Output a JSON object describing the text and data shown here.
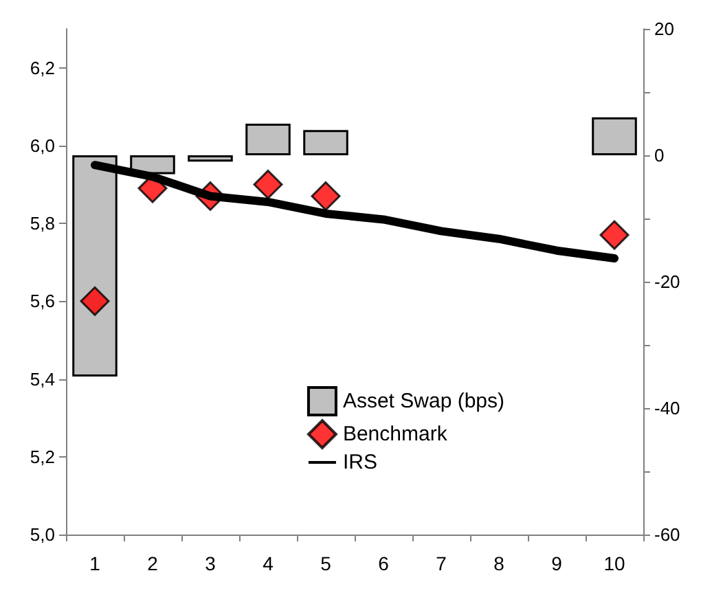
{
  "chart_data": {
    "type": "bar",
    "categories": [
      "1",
      "2",
      "3",
      "4",
      "5",
      "6",
      "7",
      "8",
      "9",
      "10"
    ],
    "series": [
      {
        "name": "Asset Swap (bps)",
        "axis": "y2",
        "color": "#c0c0c0",
        "values": [
          -35,
          -3,
          -1,
          5,
          4,
          null,
          null,
          null,
          null,
          6
        ]
      },
      {
        "name": "Benchmark",
        "type": "scatter",
        "marker": "diamond",
        "color": "#ff0000",
        "values": [
          5.6,
          5.89,
          5.87,
          5.9,
          5.87,
          null,
          null,
          null,
          null,
          5.77
        ]
      },
      {
        "name": "IRS",
        "type": "line",
        "marker": "none",
        "color": "#000000",
        "values": [
          5.95,
          5.92,
          5.87,
          5.855,
          5.825,
          5.81,
          5.78,
          5.76,
          5.73,
          5.71
        ]
      }
    ],
    "ylim": [
      5.0,
      6.3
    ],
    "yticks": [
      {
        "value": 5.0,
        "label": "5,0"
      },
      {
        "value": 5.2,
        "label": "5,2"
      },
      {
        "value": 5.4,
        "label": "5,4"
      },
      {
        "value": 5.6,
        "label": "5,6"
      },
      {
        "value": 5.8,
        "label": "5,8"
      },
      {
        "value": 6.0,
        "label": "6,0"
      },
      {
        "value": 6.2,
        "label": "6,2"
      }
    ],
    "y2lim": [
      -60,
      20
    ],
    "y2ticks": [
      -60,
      {
        "value": -50,
        "label": null
      },
      -40,
      {
        "value": -30,
        "label": null
      },
      -20,
      {
        "value": -10,
        "label": null
      },
      0,
      {
        "value": 10,
        "label": null
      },
      20
    ],
    "grid": false,
    "legend": "bottom right"
  }
}
